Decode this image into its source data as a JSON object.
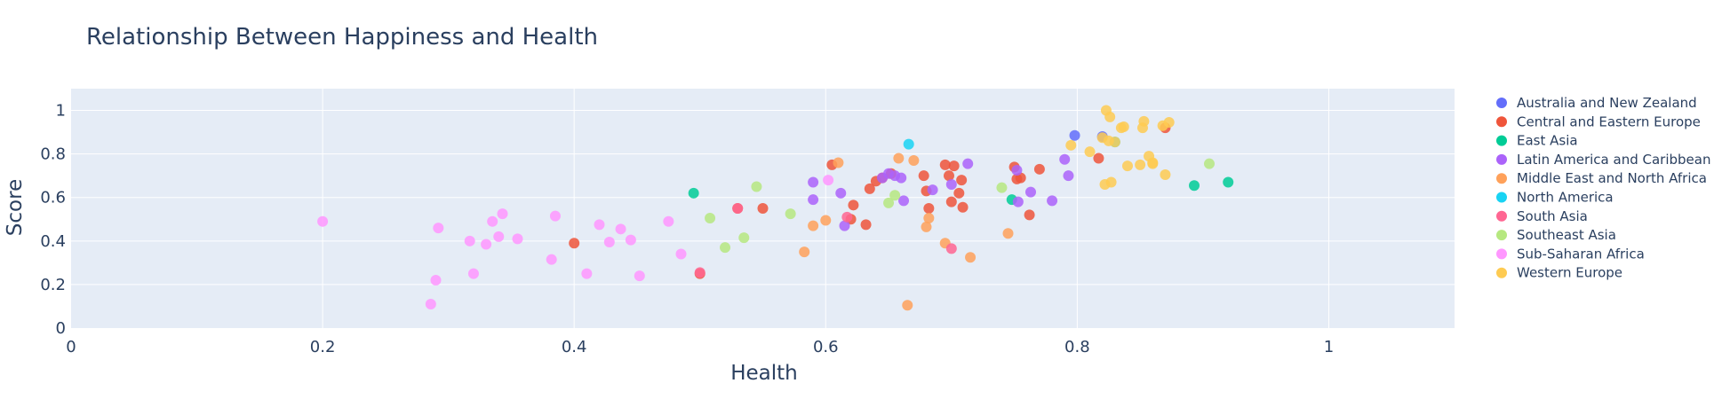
{
  "chart_data": {
    "type": "scatter",
    "title": "Relationship Between Happiness and Health",
    "xlabel": "Health",
    "ylabel": "Score",
    "xlim": [
      0,
      1.1
    ],
    "ylim": [
      0,
      1.1
    ],
    "xticks": [
      0,
      0.2,
      0.4,
      0.6,
      0.8,
      1
    ],
    "xtick_labels": [
      "0",
      "0.2",
      "0.4",
      "0.6",
      "0.8",
      "1"
    ],
    "yticks": [
      0,
      0.2,
      0.4,
      0.6,
      0.8,
      1
    ],
    "ytick_labels": [
      "0",
      "0.2",
      "0.4",
      "0.6",
      "0.8",
      "1"
    ],
    "grid": true,
    "legend_position": "right",
    "series": [
      {
        "name": "Australia and New Zealand",
        "color": "#636efa",
        "x": [
          0.798,
          0.82
        ],
        "y": [
          0.885,
          0.88
        ]
      },
      {
        "name": "Central and Eastern Europe",
        "color": "#EF553B",
        "x": [
          0.4,
          0.5,
          0.53,
          0.55,
          0.605,
          0.62,
          0.622,
          0.632,
          0.635,
          0.64,
          0.645,
          0.652,
          0.678,
          0.68,
          0.682,
          0.695,
          0.698,
          0.7,
          0.702,
          0.706,
          0.708,
          0.709,
          0.75,
          0.752,
          0.755,
          0.762,
          0.77,
          0.817,
          0.87
        ],
        "y": [
          0.39,
          0.25,
          0.55,
          0.55,
          0.75,
          0.5,
          0.565,
          0.475,
          0.64,
          0.675,
          0.69,
          0.71,
          0.7,
          0.63,
          0.55,
          0.75,
          0.7,
          0.58,
          0.745,
          0.62,
          0.68,
          0.555,
          0.74,
          0.685,
          0.69,
          0.52,
          0.73,
          0.78,
          0.92
        ]
      },
      {
        "name": "East Asia",
        "color": "#00cc96",
        "x": [
          0.495,
          0.748,
          0.893,
          0.92
        ],
        "y": [
          0.62,
          0.59,
          0.655,
          0.67
        ]
      },
      {
        "name": "Latin America and Caribbean",
        "color": "#ab63fa",
        "x": [
          0.59,
          0.59,
          0.612,
          0.615,
          0.645,
          0.65,
          0.655,
          0.66,
          0.662,
          0.685,
          0.7,
          0.713,
          0.752,
          0.753,
          0.763,
          0.78,
          0.79,
          0.793
        ],
        "y": [
          0.67,
          0.59,
          0.62,
          0.47,
          0.69,
          0.71,
          0.7,
          0.69,
          0.585,
          0.635,
          0.66,
          0.755,
          0.725,
          0.58,
          0.625,
          0.585,
          0.775,
          0.7
        ]
      },
      {
        "name": "Middle East and North Africa",
        "color": "#FFA15A",
        "x": [
          0.583,
          0.59,
          0.6,
          0.61,
          0.658,
          0.665,
          0.67,
          0.68,
          0.682,
          0.695,
          0.715,
          0.745
        ],
        "y": [
          0.35,
          0.47,
          0.495,
          0.76,
          0.78,
          0.105,
          0.77,
          0.465,
          0.505,
          0.39,
          0.325,
          0.435
        ]
      },
      {
        "name": "North America",
        "color": "#19d3f3",
        "x": [
          0.666,
          0.83
        ],
        "y": [
          0.845,
          0.855
        ]
      },
      {
        "name": "South Asia",
        "color": "#FF6692",
        "x": [
          0.5,
          0.53,
          0.617,
          0.7
        ],
        "y": [
          0.255,
          0.55,
          0.51,
          0.365
        ]
      },
      {
        "name": "Southeast Asia",
        "color": "#B6E880",
        "x": [
          0.508,
          0.52,
          0.535,
          0.545,
          0.572,
          0.65,
          0.655,
          0.74,
          0.905
        ],
        "y": [
          0.505,
          0.37,
          0.415,
          0.65,
          0.525,
          0.575,
          0.61,
          0.645,
          0.755
        ]
      },
      {
        "name": "Sub-Saharan Africa",
        "color": "#FF97FF",
        "x": [
          0.2,
          0.286,
          0.29,
          0.292,
          0.317,
          0.32,
          0.33,
          0.335,
          0.34,
          0.343,
          0.355,
          0.382,
          0.385,
          0.41,
          0.42,
          0.428,
          0.437,
          0.445,
          0.452,
          0.475,
          0.485,
          0.602
        ],
        "y": [
          0.49,
          0.11,
          0.22,
          0.46,
          0.4,
          0.25,
          0.385,
          0.49,
          0.42,
          0.525,
          0.41,
          0.315,
          0.515,
          0.25,
          0.475,
          0.395,
          0.455,
          0.405,
          0.24,
          0.49,
          0.34,
          0.68
        ]
      },
      {
        "name": "Western Europe",
        "color": "#FECB52",
        "x": [
          0.795,
          0.81,
          0.82,
          0.822,
          0.823,
          0.825,
          0.826,
          0.827,
          0.83,
          0.835,
          0.837,
          0.84,
          0.85,
          0.852,
          0.853,
          0.857,
          0.86,
          0.86,
          0.868,
          0.87,
          0.873
        ],
        "y": [
          0.84,
          0.81,
          0.875,
          0.66,
          1.0,
          0.86,
          0.97,
          0.67,
          0.855,
          0.92,
          0.925,
          0.745,
          0.75,
          0.92,
          0.95,
          0.79,
          0.755,
          0.76,
          0.93,
          0.705,
          0.945
        ]
      }
    ]
  }
}
